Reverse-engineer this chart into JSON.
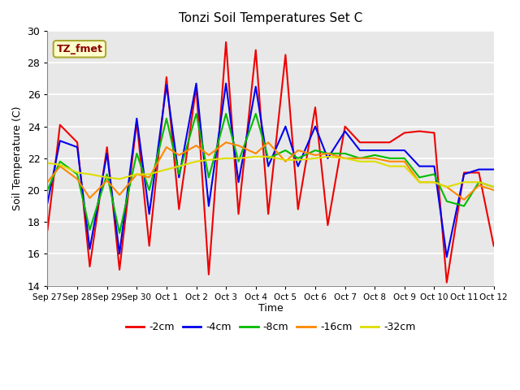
{
  "title": "Tonzi Soil Temperatures Set C",
  "xlabel": "Time",
  "ylabel": "Soil Temperature (C)",
  "ylim": [
    14,
    30
  ],
  "background_color": "#e8e8e8",
  "grid_color": "#ffffff",
  "annotation_text": "TZ_fmet",
  "annotation_bg": "#ffffcc",
  "annotation_border": "#aaa830",
  "annotation_text_color": "#880000",
  "x_tick_labels": [
    "Sep 27",
    "Sep 28",
    "Sep 29",
    "Sep 30",
    "Oct 1",
    "Oct 2",
    "Oct 3",
    "Oct 4",
    "Oct 5",
    "Oct 6",
    "Oct 7",
    "Oct 8",
    "Oct 9",
    "Oct 10",
    "Oct 11",
    "Oct 12"
  ],
  "series": {
    "-2cm": {
      "color": "#ee0000",
      "x": [
        0,
        0.42,
        1,
        1.42,
        2,
        2.42,
        3,
        3.42,
        4,
        4.42,
        5,
        5.42,
        6,
        6.42,
        7,
        7.42,
        8,
        8.42,
        9,
        9.42,
        10,
        10.5,
        11,
        11.5,
        12,
        12.5,
        13,
        13.42,
        14,
        14.5,
        15
      ],
      "y": [
        17.5,
        24.1,
        23.0,
        15.2,
        22.7,
        15.0,
        24.3,
        16.5,
        27.1,
        18.8,
        26.5,
        14.7,
        29.3,
        18.5,
        28.8,
        18.5,
        28.5,
        18.8,
        25.2,
        17.8,
        24.0,
        23.0,
        23.0,
        23.0,
        23.6,
        23.7,
        23.6,
        14.2,
        21.1,
        21.1,
        16.5
      ]
    },
    "-4cm": {
      "color": "#0000ee",
      "x": [
        0,
        0.42,
        1,
        1.42,
        2,
        2.42,
        3,
        3.42,
        4,
        4.42,
        5,
        5.42,
        6,
        6.42,
        7,
        7.42,
        8,
        8.42,
        9,
        9.42,
        10,
        10.5,
        11,
        11.5,
        12,
        12.5,
        13,
        13.42,
        14,
        14.5,
        15
      ],
      "y": [
        19.2,
        23.1,
        22.7,
        16.3,
        22.3,
        16.0,
        24.5,
        18.5,
        26.6,
        20.8,
        26.7,
        19.0,
        26.7,
        20.5,
        26.5,
        21.5,
        24.0,
        21.5,
        24.0,
        22.0,
        23.7,
        22.5,
        22.5,
        22.5,
        22.5,
        21.5,
        21.5,
        15.8,
        21.0,
        21.3,
        21.3
      ]
    },
    "-8cm": {
      "color": "#00bb00",
      "x": [
        0,
        0.42,
        1,
        1.42,
        2,
        2.42,
        3,
        3.42,
        4,
        4.42,
        5,
        5.42,
        6,
        6.42,
        7,
        7.42,
        8,
        8.42,
        9,
        9.42,
        10,
        10.5,
        11,
        11.5,
        12,
        12.5,
        13,
        13.42,
        14,
        14.5,
        15
      ],
      "y": [
        20.0,
        21.8,
        21.0,
        17.5,
        21.0,
        17.3,
        22.3,
        20.0,
        24.5,
        21.0,
        24.8,
        20.8,
        24.8,
        21.8,
        24.8,
        22.0,
        22.5,
        22.0,
        22.5,
        22.3,
        22.3,
        22.0,
        22.2,
        22.0,
        22.0,
        20.8,
        21.0,
        19.3,
        19.0,
        20.5,
        20.2
      ]
    },
    "-16cm": {
      "color": "#ff8800",
      "x": [
        0,
        0.42,
        1,
        1.42,
        2,
        2.42,
        3,
        3.42,
        4,
        4.42,
        5,
        5.42,
        6,
        6.42,
        7,
        7.42,
        8,
        8.42,
        9,
        9.42,
        10,
        10.5,
        11,
        11.5,
        12,
        12.5,
        13,
        13.42,
        14,
        14.5,
        15
      ],
      "y": [
        20.5,
        21.5,
        20.7,
        19.5,
        20.6,
        19.7,
        21.0,
        20.8,
        22.7,
        22.2,
        22.8,
        22.2,
        23.0,
        22.8,
        22.3,
        23.0,
        21.8,
        22.5,
        22.2,
        22.3,
        22.0,
        22.0,
        22.0,
        21.8,
        21.8,
        20.5,
        20.5,
        20.2,
        19.4,
        20.3,
        20.0
      ]
    },
    "-32cm": {
      "color": "#dddd00",
      "x": [
        0,
        0.42,
        1,
        1.42,
        2,
        2.42,
        3,
        3.42,
        4,
        4.42,
        5,
        5.42,
        6,
        6.42,
        7,
        7.42,
        8,
        8.42,
        9,
        9.42,
        10,
        10.5,
        11,
        11.5,
        12,
        12.5,
        13,
        13.42,
        14,
        14.5,
        15
      ],
      "y": [
        21.7,
        21.6,
        21.1,
        21.0,
        20.8,
        20.7,
        21.0,
        21.0,
        21.3,
        21.5,
        21.8,
        21.9,
        22.0,
        22.0,
        22.1,
        22.1,
        21.9,
        21.9,
        22.0,
        22.1,
        22.0,
        21.8,
        21.8,
        21.5,
        21.5,
        20.5,
        20.5,
        20.2,
        20.5,
        20.5,
        20.2
      ]
    }
  },
  "legend_entries": [
    "-2cm",
    "-4cm",
    "-8cm",
    "-16cm",
    "-32cm"
  ],
  "legend_colors": [
    "#ee0000",
    "#0000ee",
    "#00bb00",
    "#ff8800",
    "#dddd00"
  ]
}
